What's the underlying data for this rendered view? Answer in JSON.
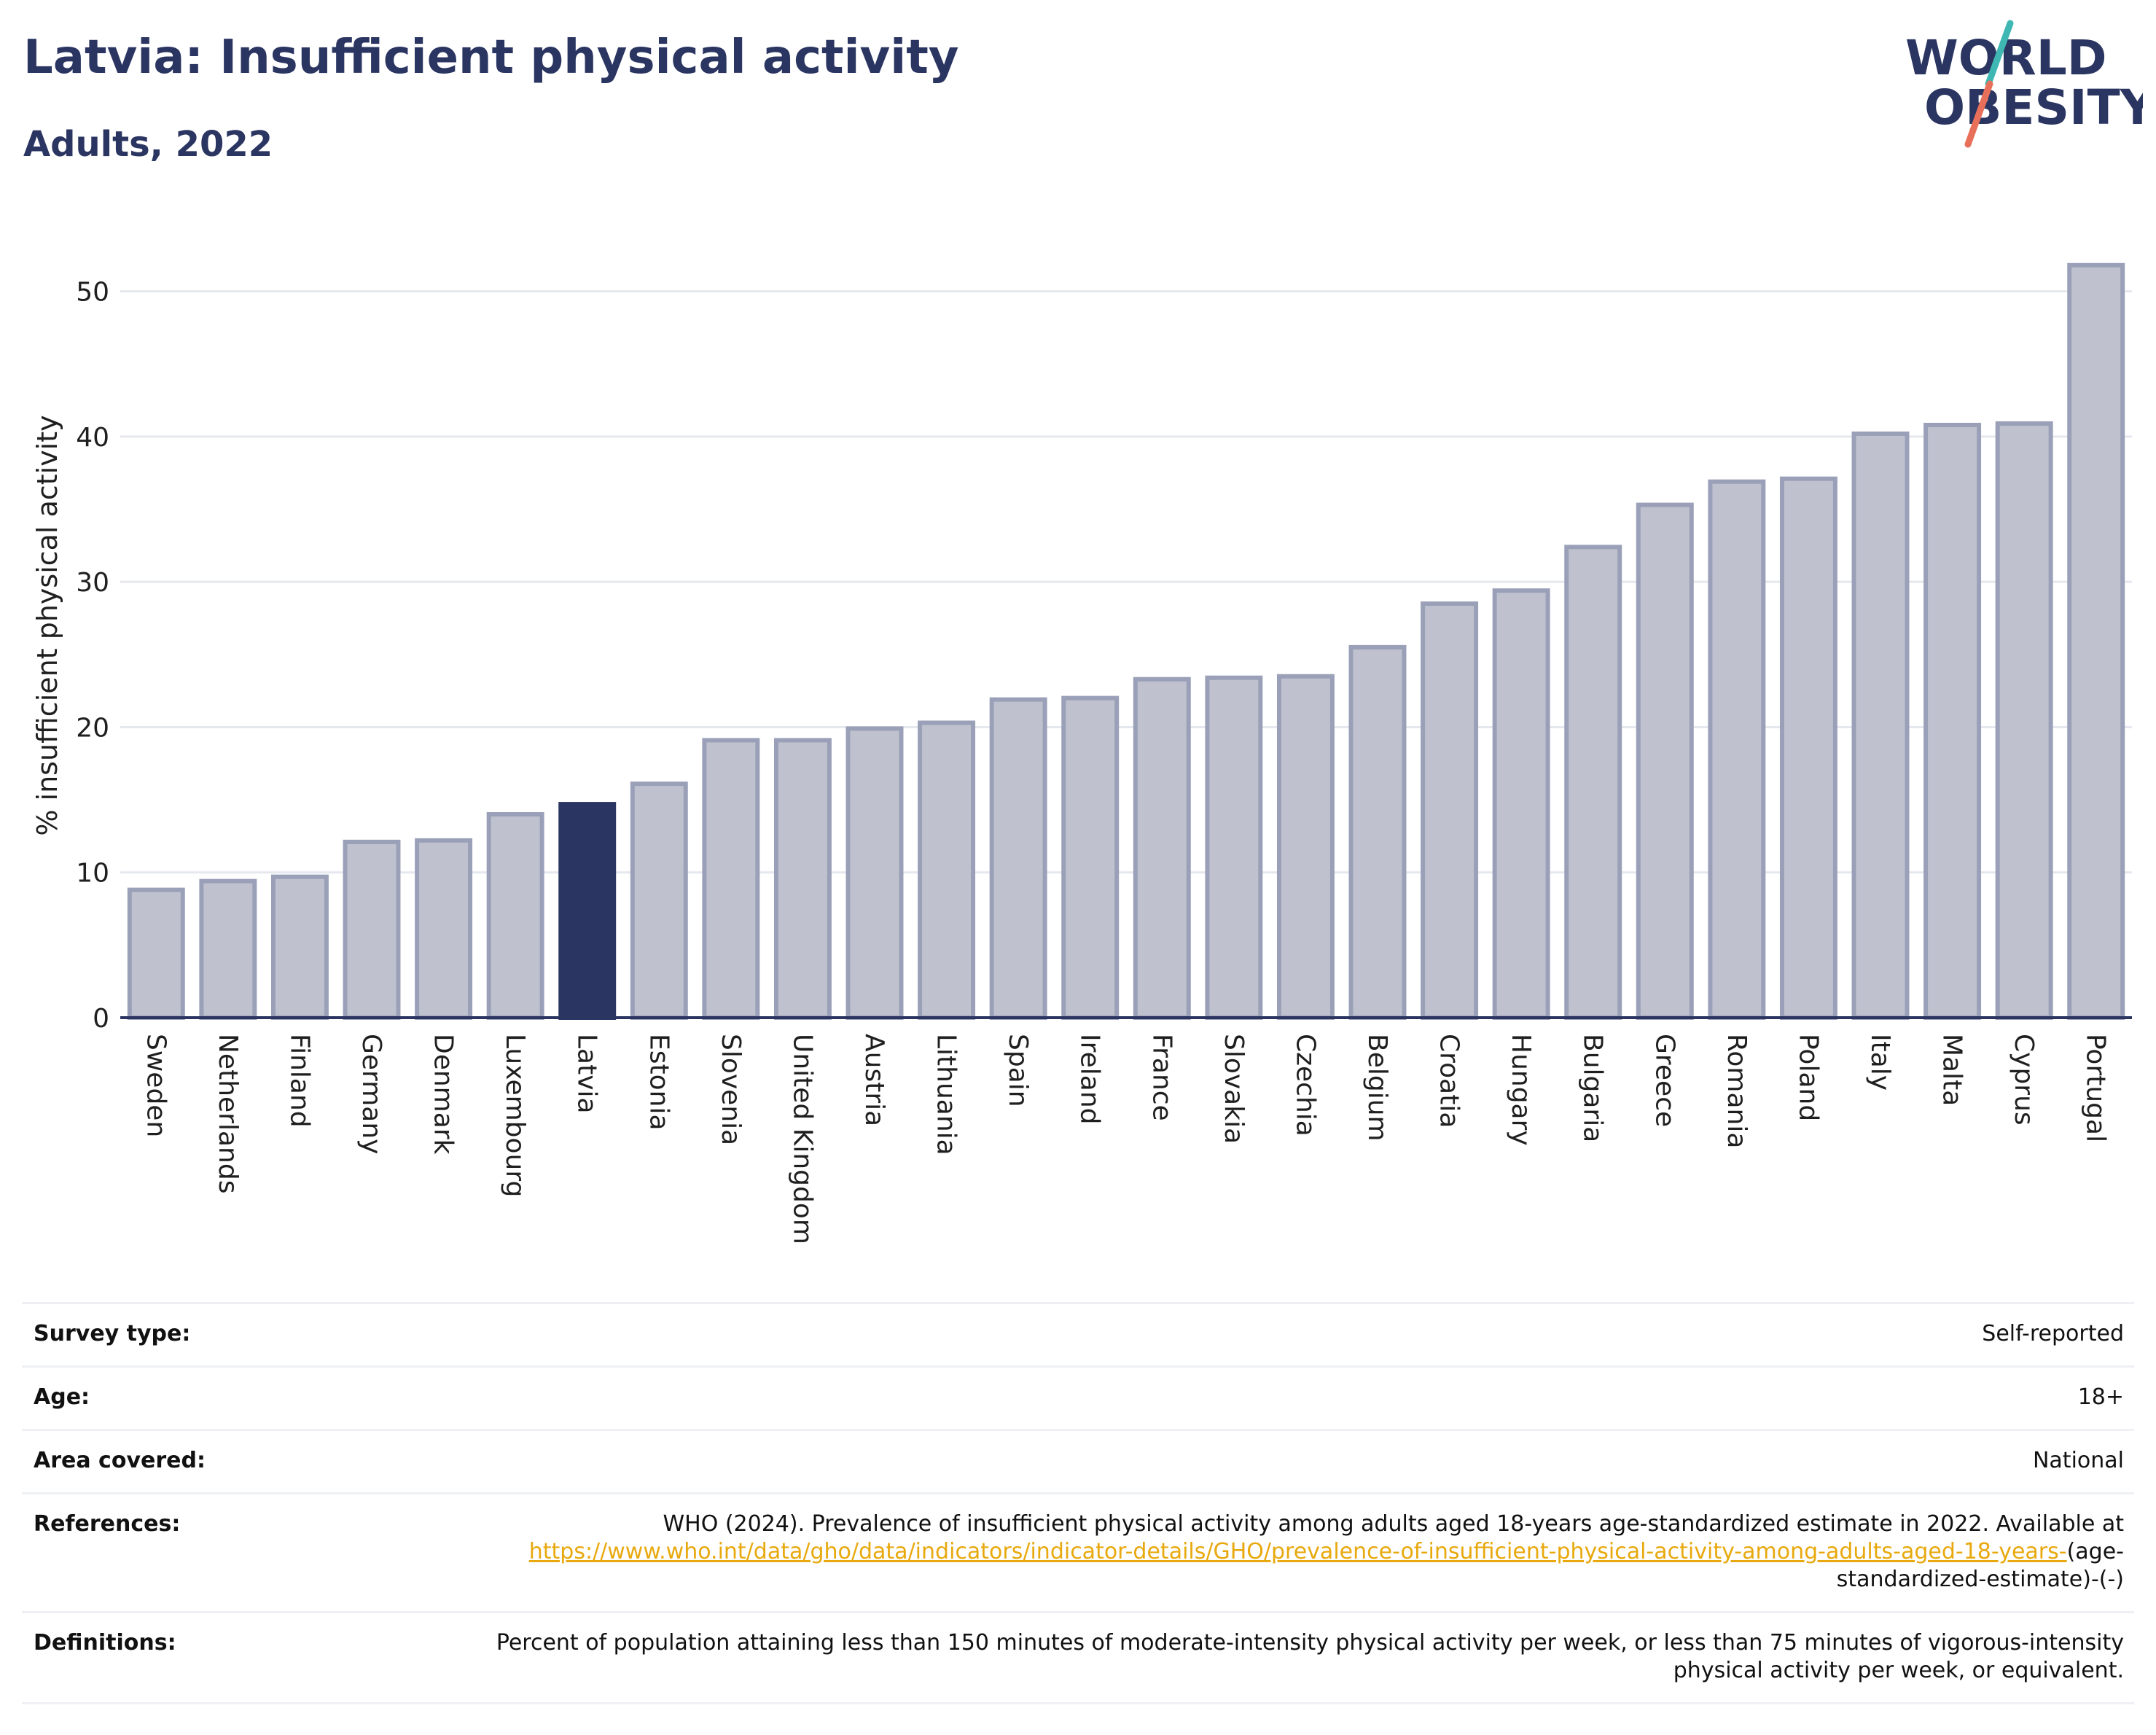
{
  "header": {
    "title": "Latvia: Insufficient physical activity",
    "subtitle": "Adults, 2022"
  },
  "logo": {
    "line1": "WORLD",
    "line2": "OBESITY"
  },
  "colors": {
    "highlight": "#2b3561",
    "bar_fill": "#bfc2ce",
    "bar_stroke": "#9aa0b8",
    "grid": "#e6e8ef",
    "axis": "#2b3561"
  },
  "chart_data": {
    "type": "bar",
    "highlight": "Latvia",
    "categories": [
      "Sweden",
      "Netherlands",
      "Finland",
      "Germany",
      "Denmark",
      "Luxembourg",
      "Latvia",
      "Estonia",
      "Slovenia",
      "United Kingdom",
      "Austria",
      "Lithuania",
      "Spain",
      "Ireland",
      "France",
      "Slovakia",
      "Czechia",
      "Belgium",
      "Croatia",
      "Hungary",
      "Bulgaria",
      "Greece",
      "Romania",
      "Poland",
      "Italy",
      "Malta",
      "Cyprus",
      "Portugal"
    ],
    "values": [
      8.8,
      9.4,
      9.7,
      12.1,
      12.2,
      14.0,
      14.7,
      16.1,
      19.1,
      19.1,
      19.9,
      20.3,
      21.9,
      22.0,
      23.3,
      23.4,
      23.5,
      25.5,
      28.5,
      29.4,
      32.4,
      35.3,
      36.9,
      37.1,
      40.2,
      40.8,
      40.9,
      51.8
    ],
    "ylabel": "% insufficient physical activity",
    "xlabel": "",
    "ylim": [
      0,
      55
    ],
    "yticks": [
      0,
      10,
      20,
      30,
      40,
      50
    ],
    "grid": true
  },
  "info": {
    "survey_type": {
      "label": "Survey type:",
      "value": "Self-reported"
    },
    "age": {
      "label": "Age:",
      "value": "18+"
    },
    "area": {
      "label": "Area covered:",
      "value": "National"
    },
    "references": {
      "label": "References:",
      "text": "WHO (2024). Prevalence of insufficient physical activity among adults aged 18-years age-standardized estimate in 2022. Available at",
      "link": "https://www.who.int/data/gho/data/indicators/indicator-details/GHO/prevalence-of-insufficient-physical-activity-among-adults-aged-18-years-",
      "suffix": "(age-standardized-estimate)-(-)"
    },
    "definitions": {
      "label": "Definitions:",
      "value": "Percent of population attaining less than 150 minutes of moderate-intensity physical activity per week, or less than 75 minutes of vigorous-intensity physical activity per week, or equivalent."
    }
  }
}
